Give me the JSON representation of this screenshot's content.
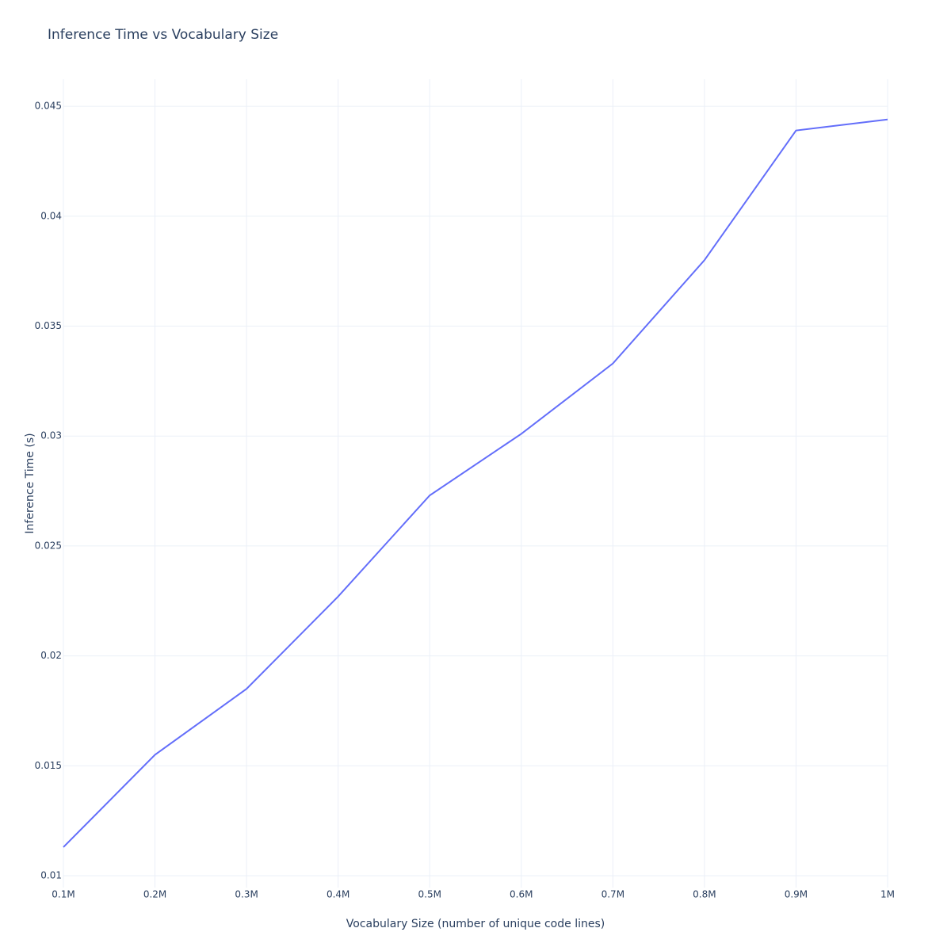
{
  "chart_data": {
    "type": "line",
    "title": "Inference Time vs Vocabulary Size",
    "x_label": "Vocabulary Size (number of unique code lines)",
    "y_label": "Inference Time (s)",
    "x": [
      100000,
      200000,
      300000,
      400000,
      500000,
      600000,
      700000,
      800000,
      900000,
      1000000
    ],
    "series": [
      {
        "name": "Inference Time",
        "color": "#636efa",
        "values": [
          0.0113,
          0.0155,
          0.0185,
          0.0227,
          0.0273,
          0.0301,
          0.0333,
          0.038,
          0.0439,
          0.0444
        ]
      }
    ],
    "xlim": [
      100000,
      1000000
    ],
    "xticks": [
      {
        "value": 100000,
        "label": "0.1M"
      },
      {
        "value": 200000,
        "label": "0.2M"
      },
      {
        "value": 300000,
        "label": "0.3M"
      },
      {
        "value": 400000,
        "label": "0.4M"
      },
      {
        "value": 500000,
        "label": "0.5M"
      },
      {
        "value": 600000,
        "label": "0.6M"
      },
      {
        "value": 700000,
        "label": "0.7M"
      },
      {
        "value": 800000,
        "label": "0.8M"
      },
      {
        "value": 900000,
        "label": "0.9M"
      },
      {
        "value": 1000000,
        "label": "1M"
      }
    ],
    "ylim": [
      0.00946,
      0.04623
    ],
    "yticks": [
      0.01,
      0.015,
      0.02,
      0.025,
      0.03,
      0.035,
      0.04,
      0.045
    ],
    "grid": true
  }
}
